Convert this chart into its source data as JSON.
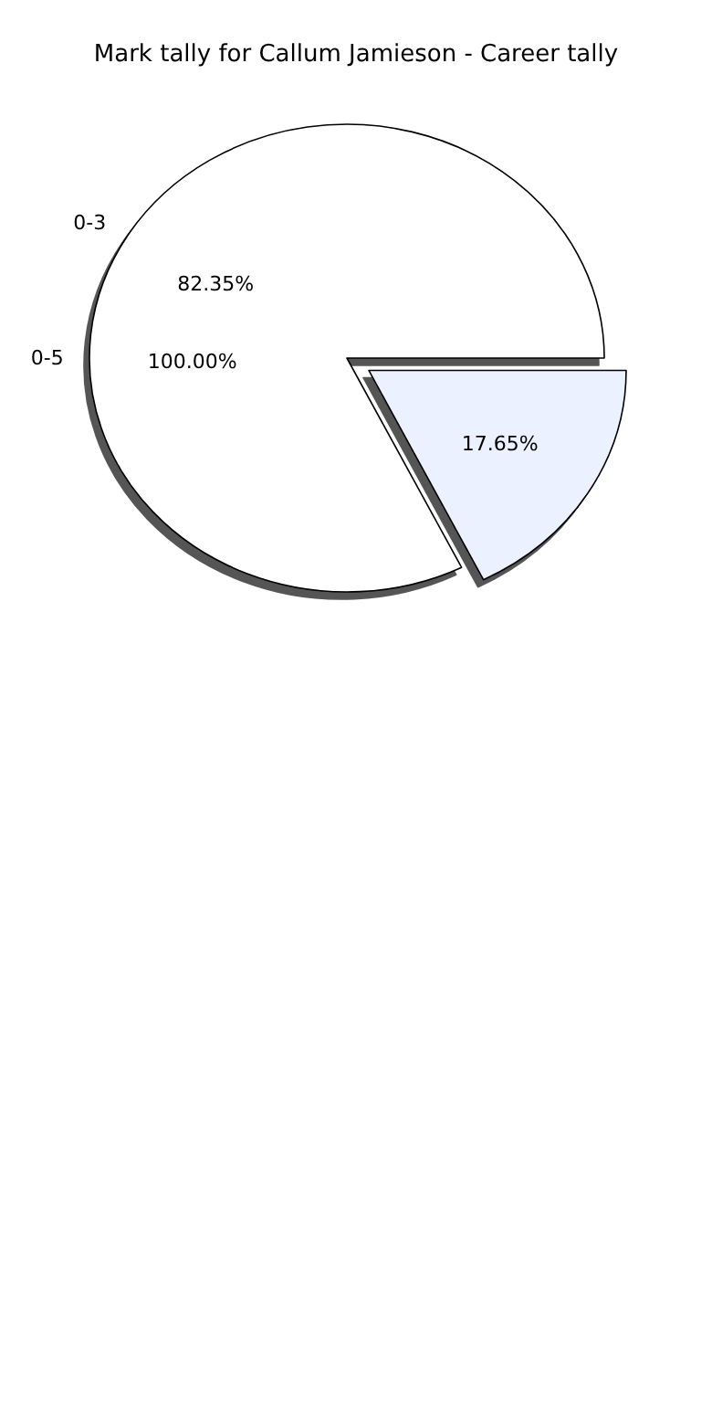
{
  "chart_data": {
    "type": "pie",
    "title": "Mark tally for Callum Jamieson - Career tally",
    "categories": [
      "0-3",
      null
    ],
    "values": [
      82.35,
      17.65
    ],
    "colors": [
      "#ffffff",
      "#ebf1ff"
    ],
    "value_labels": [
      "82.35%",
      "17.65%"
    ],
    "annotations": [
      "0-5",
      "100.00%"
    ]
  }
}
